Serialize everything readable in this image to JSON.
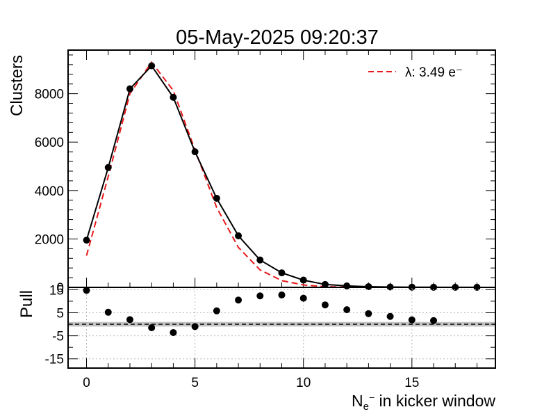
{
  "chart_data": {
    "type": "scatter",
    "title": "05-May-2025 09:20:37",
    "xlabel": {
      "main": "N",
      "sub": "e",
      "sup": "−",
      "rest": " in kicker window"
    },
    "top_panel": {
      "ylabel": "Clusters",
      "ylim": [
        0,
        9800
      ],
      "yticks": [
        0,
        2000,
        4000,
        6000,
        8000
      ],
      "ytick_labels": [
        "0",
        "2000",
        "4000",
        "6000",
        "8000"
      ],
      "series": [
        {
          "name": "data",
          "style": "points-with-line",
          "color": "#000000",
          "x": [
            0,
            1,
            2,
            3,
            4,
            5,
            6,
            7,
            8,
            9,
            10,
            11,
            12,
            13,
            14,
            15,
            16,
            17,
            18
          ],
          "y": [
            1950,
            4950,
            8200,
            9150,
            7850,
            5600,
            3680,
            2130,
            1130,
            600,
            300,
            120,
            60,
            30,
            15,
            8,
            5,
            3,
            2
          ]
        },
        {
          "name": "λ: 3.49 e⁻",
          "style": "dashed-line",
          "color": "#e8191a",
          "x": [
            0,
            1,
            2,
            3,
            4,
            5,
            6,
            7,
            8,
            9,
            10,
            11,
            12,
            13,
            14,
            15,
            16,
            17,
            18
          ],
          "y": [
            1310,
            4580,
            8000,
            9300,
            8130,
            5680,
            3300,
            1650,
            720,
            280,
            100,
            30,
            9,
            2,
            1,
            0,
            0,
            0,
            0
          ]
        }
      ],
      "legend": {
        "position": "top-right",
        "label": "λ: 3.49 e⁻"
      }
    },
    "bottom_panel": {
      "ylabel": "Pull",
      "ylim": [
        -19,
        16
      ],
      "yticks": [
        15,
        5,
        -5,
        -15
      ],
      "ytick_labels": [
        "15",
        "5",
        "-5",
        "-15"
      ],
      "band": [
        -1,
        1
      ],
      "reference_line": 0,
      "series": [
        {
          "name": "pull",
          "x": [
            0,
            1,
            2,
            3,
            4,
            5,
            6,
            7,
            8,
            9,
            10,
            11,
            12,
            13,
            14,
            15,
            16
          ],
          "y": [
            14.7,
            5.2,
            2.0,
            -1.5,
            -3.6,
            -1.0,
            5.8,
            10.5,
            12.3,
            12.7,
            11.3,
            8.4,
            6.3,
            4.6,
            3.4,
            1.9,
            1.6
          ]
        }
      ]
    },
    "xlim": [
      -0.85,
      18.85
    ],
    "xticks": [
      0,
      5,
      10,
      15
    ],
    "xtick_labels": [
      "0",
      "5",
      "10",
      "15"
    ],
    "grid": true
  }
}
